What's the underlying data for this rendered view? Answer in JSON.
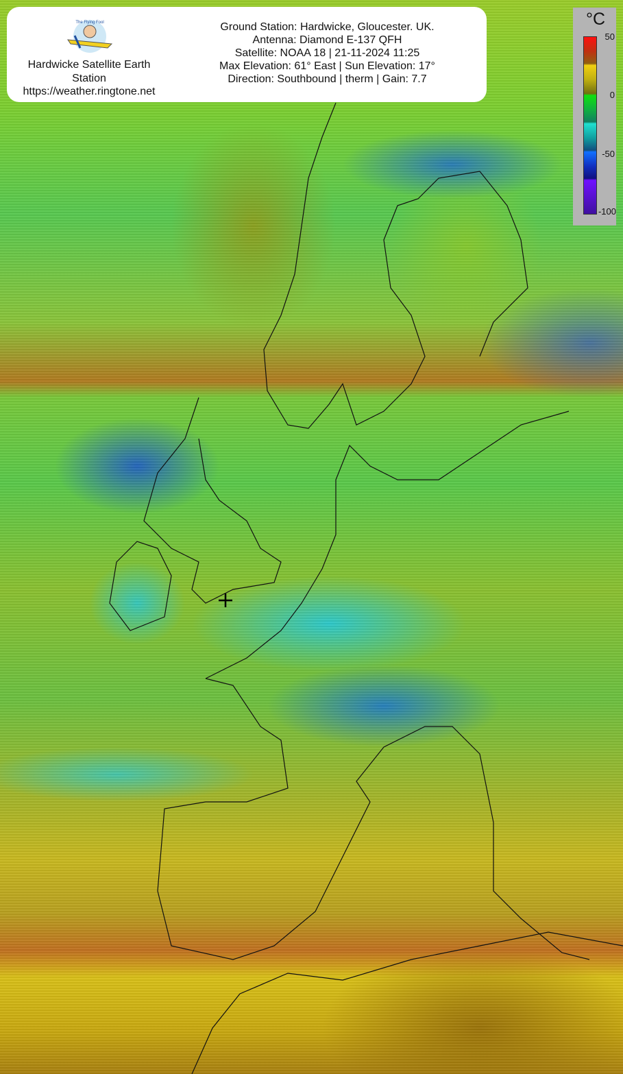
{
  "header": {
    "station_name": "Hardwicke Satellite Earth Station",
    "url": "https://weather.ringtone.net",
    "logo_text": "The Flying Fool",
    "info_lines": [
      "Ground Station: Hardwicke, Gloucester. UK.",
      "Antenna: Diamond E-137 QFH",
      "Satellite: NOAA 18 | 21-11-2024 11:25",
      "Max Elevation: 61° East | Sun Elevation: 17°",
      "Direction: Southbound | therm | Gain: 7.7"
    ]
  },
  "legend": {
    "unit": "°C",
    "ticks": [
      "50",
      "0",
      "-50",
      "-100"
    ],
    "range": [
      -100,
      50
    ]
  },
  "map": {
    "marker": "crosshair-ground-station"
  }
}
